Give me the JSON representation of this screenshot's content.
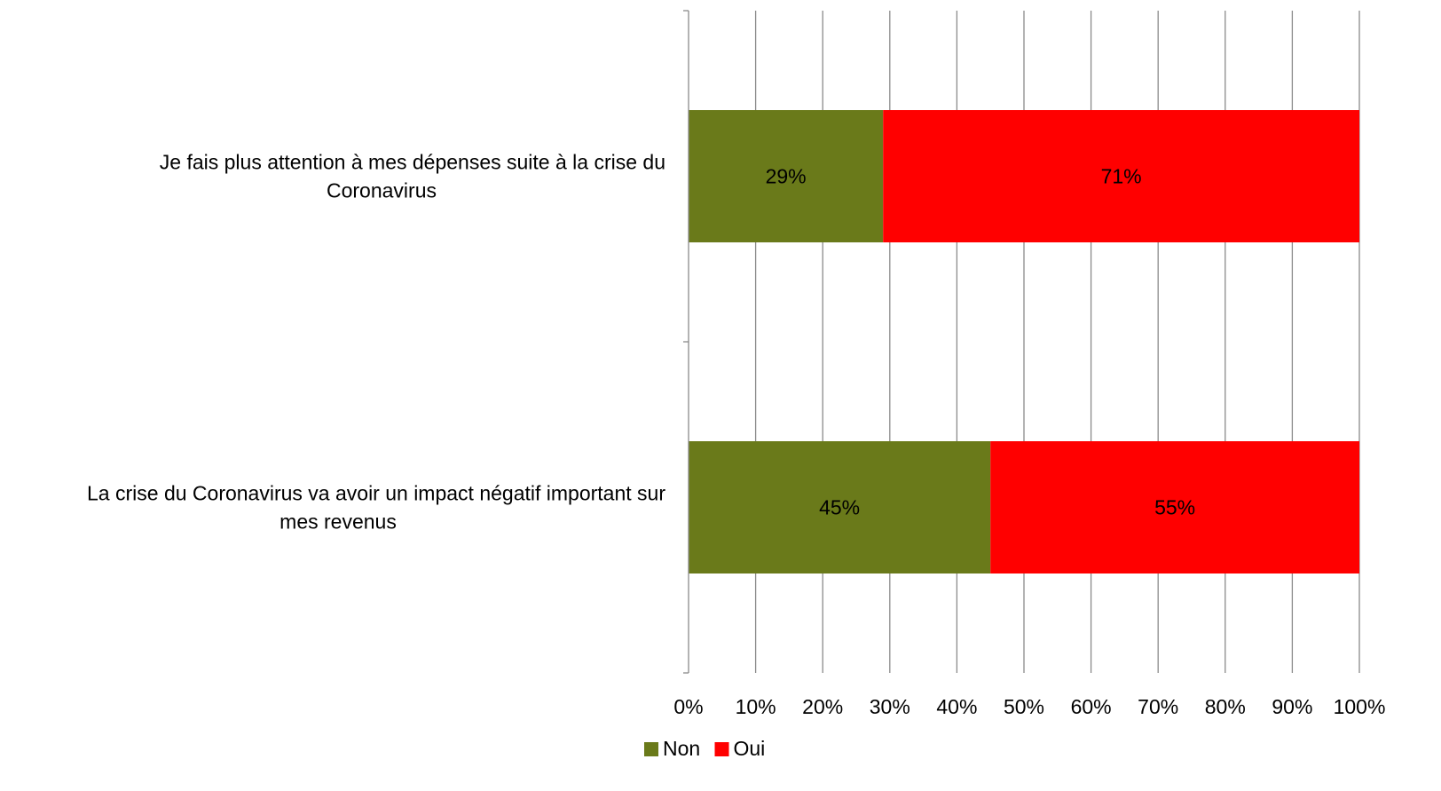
{
  "chart_data": {
    "type": "bar",
    "orientation": "horizontal",
    "stacked": true,
    "normalized": true,
    "categories": [
      [
        "Je fais plus attention à mes dépenses suite à la crise du",
        "Coronavirus"
      ],
      [
        "La crise du Coronavirus va avoir un impact négatif important sur",
        "mes revenus"
      ]
    ],
    "series": [
      {
        "name": "Non",
        "color": "#6a7a1a",
        "values": [
          29,
          45
        ],
        "labels": [
          "29%",
          "45%"
        ]
      },
      {
        "name": "Oui",
        "color": "#ff0000",
        "values": [
          71,
          55
        ],
        "labels": [
          "71%",
          "55%"
        ]
      }
    ],
    "xlim": [
      0,
      100
    ],
    "xticks": [
      "0%",
      "10%",
      "20%",
      "30%",
      "40%",
      "50%",
      "60%",
      "70%",
      "80%",
      "90%",
      "100%"
    ],
    "grid": true,
    "legend": "bottom",
    "title": "",
    "xlabel": "",
    "ylabel": ""
  }
}
